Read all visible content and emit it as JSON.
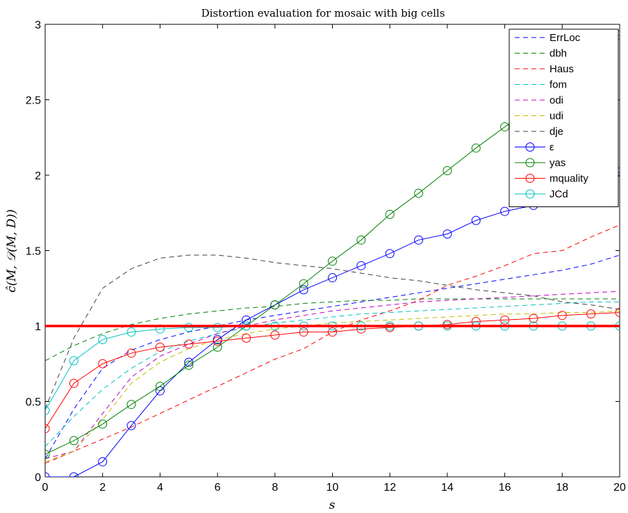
{
  "chart_data": {
    "type": "line",
    "title": "Distortion evaluation for mosaic with big cells",
    "xlabel": "s",
    "ylabel": "ĉ(M, 𝒟(M, D))",
    "xlim": [
      0,
      20
    ],
    "ylim": [
      0,
      3
    ],
    "xticks": [
      "0",
      "2",
      "4",
      "6",
      "8",
      "10",
      "12",
      "14",
      "16",
      "18",
      "20"
    ],
    "yticks": [
      "0",
      "0.5",
      "1",
      "1.5",
      "2",
      "2.5",
      "3"
    ],
    "grid": false,
    "legend_position": "top-right",
    "x": [
      0,
      1,
      2,
      3,
      4,
      5,
      6,
      7,
      8,
      9,
      10,
      11,
      12,
      13,
      14,
      15,
      16,
      17,
      18,
      19,
      20
    ],
    "reference_line": {
      "y": 1,
      "color": "#ff0000"
    },
    "series": [
      {
        "name": "ErrLoc",
        "style": "dashed",
        "marker": "none",
        "color": "#0000ff",
        "values": [
          0.12,
          0.45,
          0.72,
          0.84,
          0.91,
          0.96,
          1.0,
          1.04,
          1.07,
          1.1,
          1.13,
          1.16,
          1.19,
          1.22,
          1.25,
          1.28,
          1.31,
          1.34,
          1.37,
          1.41,
          1.47
        ]
      },
      {
        "name": "dbh",
        "style": "dashed",
        "marker": "none",
        "color": "#008000",
        "values": [
          0.77,
          0.87,
          0.95,
          1.01,
          1.05,
          1.08,
          1.1,
          1.12,
          1.13,
          1.15,
          1.16,
          1.17,
          1.17,
          1.18,
          1.18,
          1.18,
          1.18,
          1.18,
          1.18,
          1.18,
          1.18
        ]
      },
      {
        "name": "Haus",
        "style": "dashed",
        "marker": "none",
        "color": "#ff0000",
        "values": [
          0.09,
          0.17,
          0.25,
          0.33,
          0.42,
          0.51,
          0.6,
          0.69,
          0.78,
          0.85,
          0.96,
          1.04,
          1.1,
          1.17,
          1.27,
          1.33,
          1.4,
          1.48,
          1.5,
          1.59,
          1.67
        ]
      },
      {
        "name": "fom",
        "style": "dashed",
        "marker": "none",
        "color": "#00bfbf",
        "values": [
          0.2,
          0.4,
          0.58,
          0.72,
          0.83,
          0.9,
          0.95,
          0.99,
          1.02,
          1.04,
          1.06,
          1.08,
          1.09,
          1.1,
          1.11,
          1.12,
          1.13,
          1.14,
          1.15,
          1.16,
          1.16
        ]
      },
      {
        "name": "odi",
        "style": "dashed",
        "marker": "none",
        "color": "#bf00bf",
        "values": [
          0.12,
          0.17,
          0.42,
          0.66,
          0.8,
          0.88,
          0.95,
          1.0,
          1.04,
          1.07,
          1.1,
          1.12,
          1.14,
          1.16,
          1.17,
          1.18,
          1.19,
          1.2,
          1.21,
          1.22,
          1.23
        ]
      },
      {
        "name": "udi",
        "style": "dashed",
        "marker": "none",
        "color": "#bfbf00",
        "values": [
          0.1,
          0.17,
          0.38,
          0.62,
          0.76,
          0.85,
          0.91,
          0.95,
          0.98,
          1.0,
          1.02,
          1.03,
          1.04,
          1.05,
          1.06,
          1.07,
          1.08,
          1.08,
          1.09,
          1.09,
          1.1
        ]
      },
      {
        "name": "dje",
        "style": "dashed",
        "marker": "none",
        "color": "#404040",
        "values": [
          0.45,
          0.92,
          1.25,
          1.38,
          1.45,
          1.47,
          1.47,
          1.45,
          1.42,
          1.4,
          1.38,
          1.35,
          1.32,
          1.3,
          1.27,
          1.24,
          1.22,
          1.2,
          1.16,
          1.14,
          1.11
        ]
      },
      {
        "name": "ε",
        "style": "solid",
        "marker": "circle",
        "color": "#0000ff",
        "values": [
          0.0,
          0.0,
          0.1,
          0.34,
          0.57,
          0.76,
          0.91,
          1.04,
          1.14,
          1.24,
          1.32,
          1.4,
          1.48,
          1.57,
          1.61,
          1.7,
          1.76,
          1.8,
          1.86,
          1.93,
          2.02
        ]
      },
      {
        "name": "yas",
        "style": "solid",
        "marker": "circle",
        "color": "#008000",
        "values": [
          0.15,
          0.24,
          0.35,
          0.48,
          0.6,
          0.74,
          0.86,
          1.0,
          1.14,
          1.28,
          1.43,
          1.57,
          1.74,
          1.88,
          2.03,
          2.18,
          2.32,
          2.45,
          2.6,
          2.76,
          2.93
        ]
      },
      {
        "name": "mquality",
        "style": "solid",
        "marker": "circle",
        "color": "#ff0000",
        "values": [
          0.32,
          0.62,
          0.75,
          0.82,
          0.86,
          0.88,
          0.9,
          0.92,
          0.94,
          0.96,
          0.96,
          0.98,
          0.99,
          1.0,
          1.01,
          1.03,
          1.04,
          1.05,
          1.07,
          1.08,
          1.09
        ]
      },
      {
        "name": "JCd",
        "style": "solid",
        "marker": "circle",
        "color": "#00bfbf",
        "values": [
          0.44,
          0.77,
          0.91,
          0.96,
          0.98,
          0.99,
          0.99,
          1.0,
          1.0,
          1.0,
          1.0,
          1.0,
          1.0,
          1.0,
          1.0,
          1.0,
          1.0,
          1.0,
          1.0,
          1.0,
          1.0
        ]
      }
    ]
  }
}
